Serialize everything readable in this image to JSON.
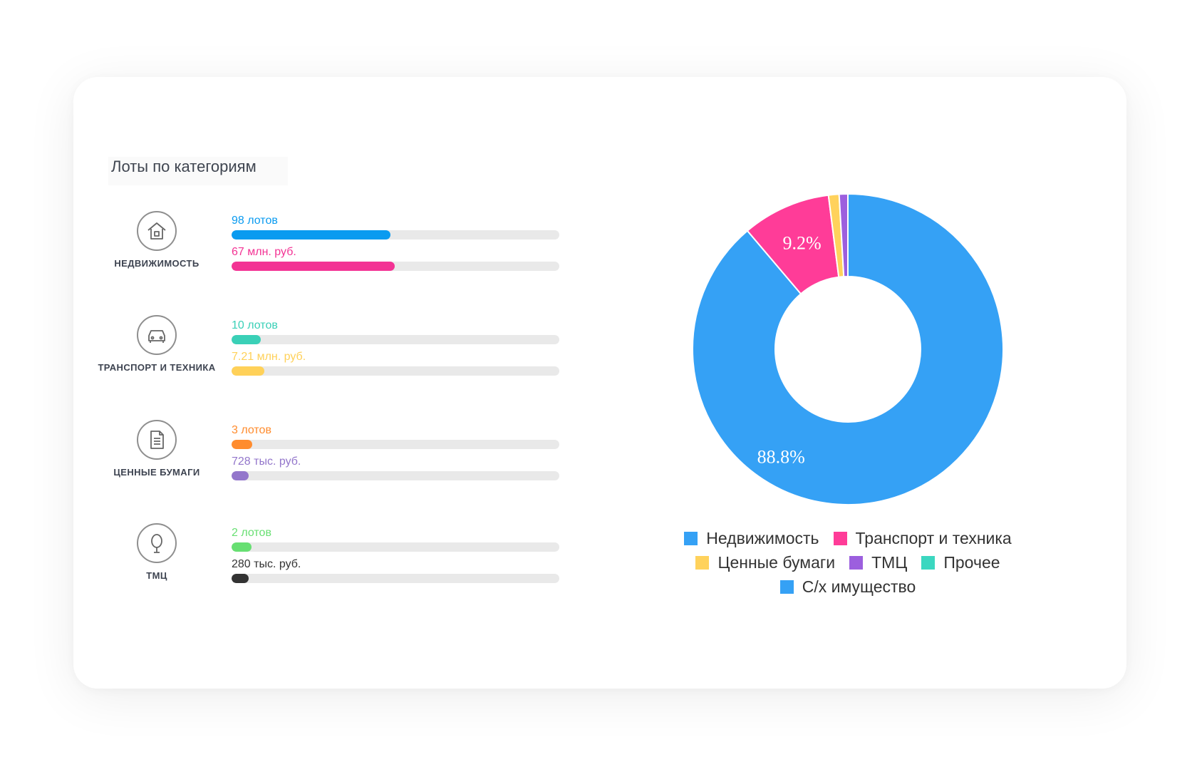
{
  "section_title": "Лоты по категориям",
  "categories": [
    {
      "label": "НЕДВИЖИМОСТЬ",
      "icon": "house-icon",
      "lots_text": "98 лотов",
      "lots_fraction": 0.485,
      "lots_color": "#0a9bf0",
      "amount_text": "67 млн. руб.",
      "amount_fraction": 0.497,
      "amount_color": "#f33394"
    },
    {
      "label": "ТРАНСПОРТ И ТЕХНИКА",
      "icon": "car-icon",
      "lots_text": "10 лотов",
      "lots_fraction": 0.09,
      "lots_color": "#3ad0b7",
      "amount_text": "7.21 млн. руб.",
      "amount_fraction": 0.1,
      "amount_color": "#ffd159"
    },
    {
      "label": "ЦЕННЫЕ БУМАГИ",
      "icon": "document-icon",
      "lots_text": "3 лотов",
      "lots_fraction": 0.063,
      "lots_color": "#ff8c2e",
      "amount_text": "728 тыс. руб.",
      "amount_fraction": 0.053,
      "amount_color": "#9376cb"
    },
    {
      "label": "ТМЦ",
      "icon": "tree-icon",
      "lots_text": "2 лотов",
      "lots_fraction": 0.06,
      "lots_color": "#67df72",
      "amount_text": "280 тыс. руб.",
      "amount_fraction": 0.052,
      "amount_color": "#333333"
    }
  ],
  "chart_data": {
    "type": "pie",
    "donut": true,
    "categories": [
      "Недвижимость",
      "Транспорт и техника",
      "Ценные бумаги",
      "ТМЦ",
      "Прочее",
      "С/х имущество"
    ],
    "values": [
      88.8,
      9.2,
      1.1,
      0.9,
      0,
      0
    ],
    "data_labels": [
      "88.8%",
      "9.2%",
      "",
      "",
      "",
      ""
    ],
    "colors": [
      "#35a1f5",
      "#ff3c98",
      "#ffd25c",
      "#9c5fde",
      "#3bd7c0",
      "#35a1f5"
    ],
    "legend_position": "bottom"
  }
}
